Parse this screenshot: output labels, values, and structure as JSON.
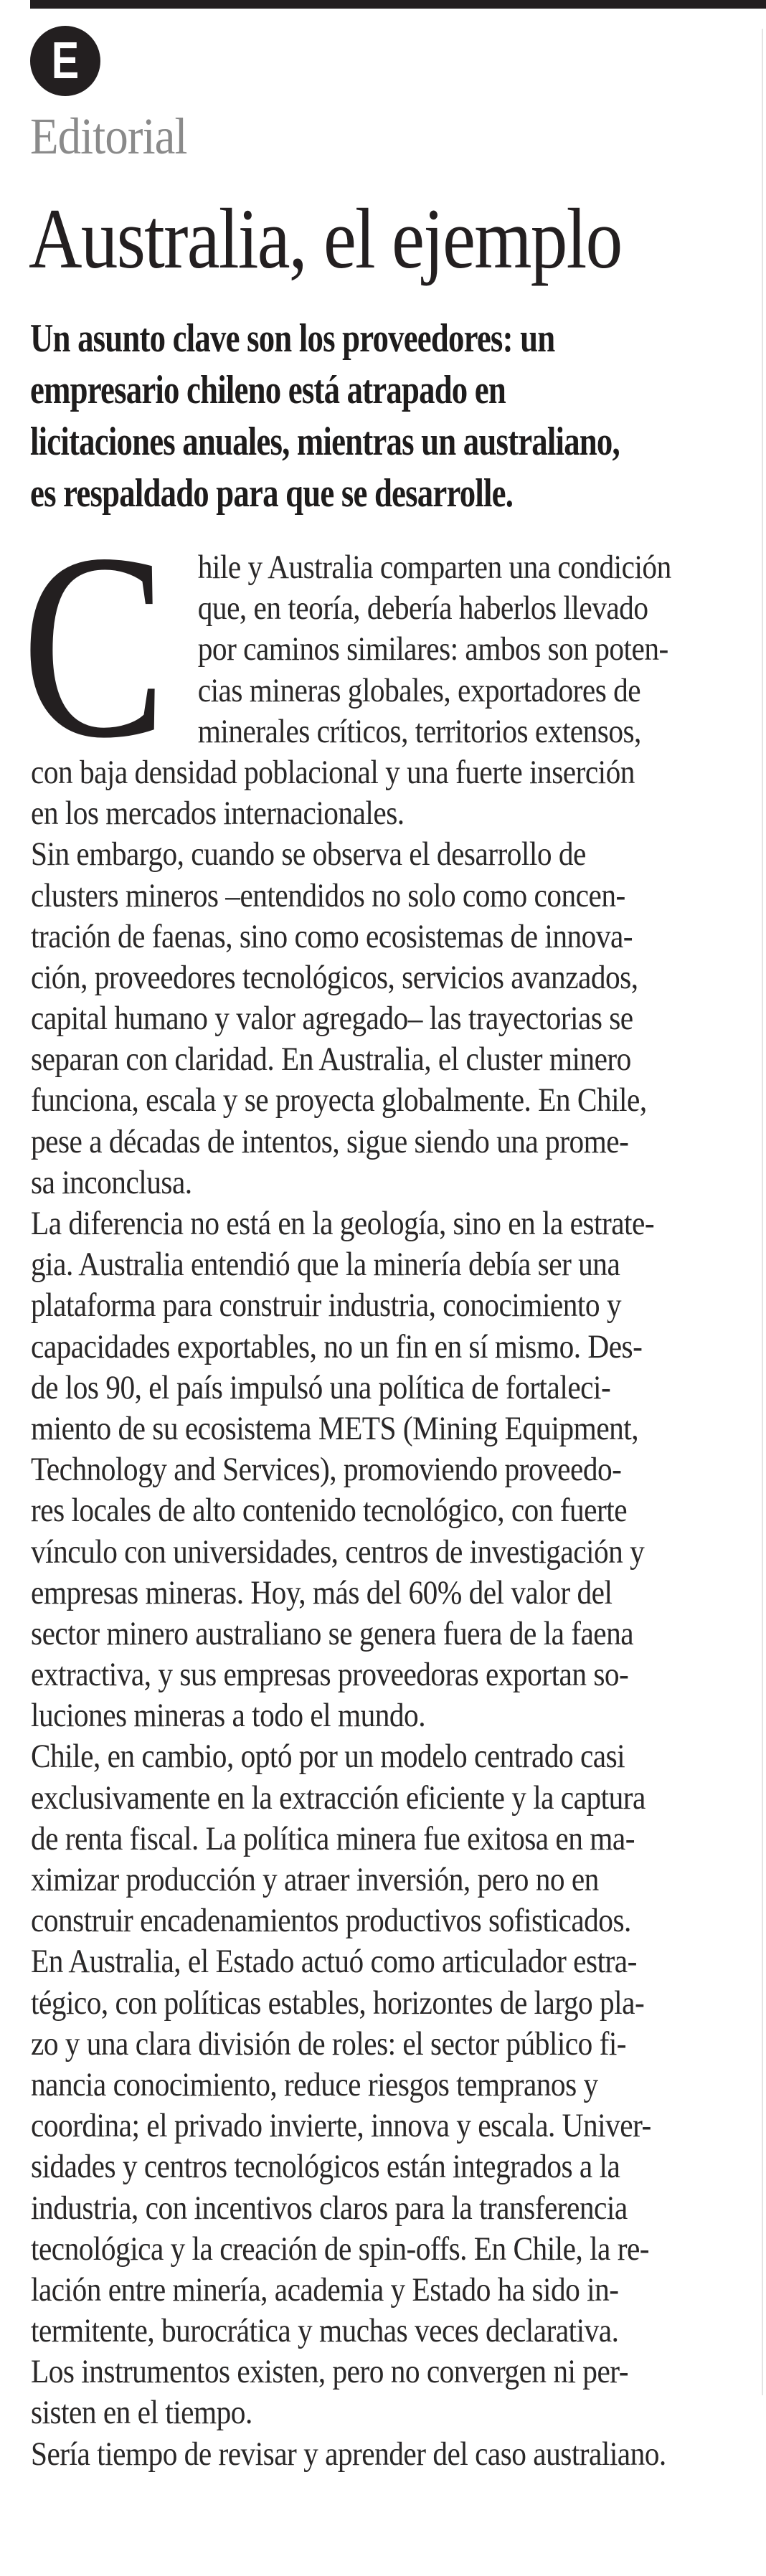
{
  "header": {
    "section_badge_letter": "E",
    "section_label": "Editorial",
    "title": "Australia, el ejemplo",
    "deck_lines": [
      "Un asunto clave son los proveedores: un",
      "empresario chileno está atrapado en",
      "licitaciones anuales, mientras un australiano,",
      "es respaldado para que se desarrolle."
    ]
  },
  "body": {
    "drop_cap": "C",
    "paragraphs": [
      [
        "hile y Australia comparten una condición",
        "que, en teoría, debería haberlos llevado",
        "por caminos similares: ambos son poten-",
        "cias mineras globales, exportadores de",
        "minerales críticos, territorios extensos,",
        "con baja densidad poblacional y una fuerte inserción",
        "en los mercados internacionales."
      ],
      [
        "Sin embargo, cuando se observa el desarrollo de",
        "clusters mineros –entendidos no solo como concen-",
        "tración de faenas, sino como ecosistemas de innova-",
        "ción, proveedores tecnológicos, servicios avanzados,",
        "capital humano y valor agregado– las trayectorias se",
        "separan con claridad. En Australia, el cluster minero",
        "funciona, escala y se proyecta globalmente. En Chile,",
        "pese a décadas de intentos, sigue siendo una prome-",
        "sa inconclusa."
      ],
      [
        "La diferencia no está en la geología, sino en la estrate-",
        "gia. Australia entendió que la minería debía ser una",
        "plataforma para construir industria, conocimiento y",
        "capacidades exportables, no un fin en sí mismo. Des-",
        "de los 90, el país impulsó una política de fortaleci-",
        "miento de su ecosistema METS (Mining Equipment,",
        "Technology and Services), promoviendo proveedo-",
        "res locales de alto contenido tecnológico, con fuerte",
        "vínculo con universidades, centros de investigación y",
        "empresas mineras. Hoy, más del 60% del valor del",
        "sector minero australiano se genera fuera de la faena",
        "extractiva, y sus empresas proveedoras exportan so-",
        "luciones mineras a todo el mundo."
      ],
      [
        "Chile, en cambio, optó por un modelo centrado casi",
        "exclusivamente en la extracción eficiente y la captura",
        "de renta fiscal. La política minera fue exitosa en ma-",
        "ximizar producción y atraer inversión, pero no en",
        "construir encadenamientos productivos sofisticados.",
        "En Australia, el Estado actuó como articulador estra-",
        "tégico, con políticas estables, horizontes de largo pla-",
        "zo y una clara división de roles: el sector público fi-",
        "nancia conocimiento, reduce riesgos tempranos y",
        "coordina; el privado invierte, innova y escala. Univer-",
        "sidades y centros tecnológicos están integrados a la",
        "industria, con incentivos claros para la transferencia",
        "tecnológica y la creación de spin-offs. En Chile, la re-",
        "lación entre minería, academia y Estado ha sido in-",
        "termitente, burocrática y muchas veces declarativa.",
        "Los instrumentos existen, pero no convergen ni per-",
        "sisten en el tiempo."
      ],
      [
        "Sería tiempo de revisar y aprender del caso australiano."
      ]
    ]
  }
}
